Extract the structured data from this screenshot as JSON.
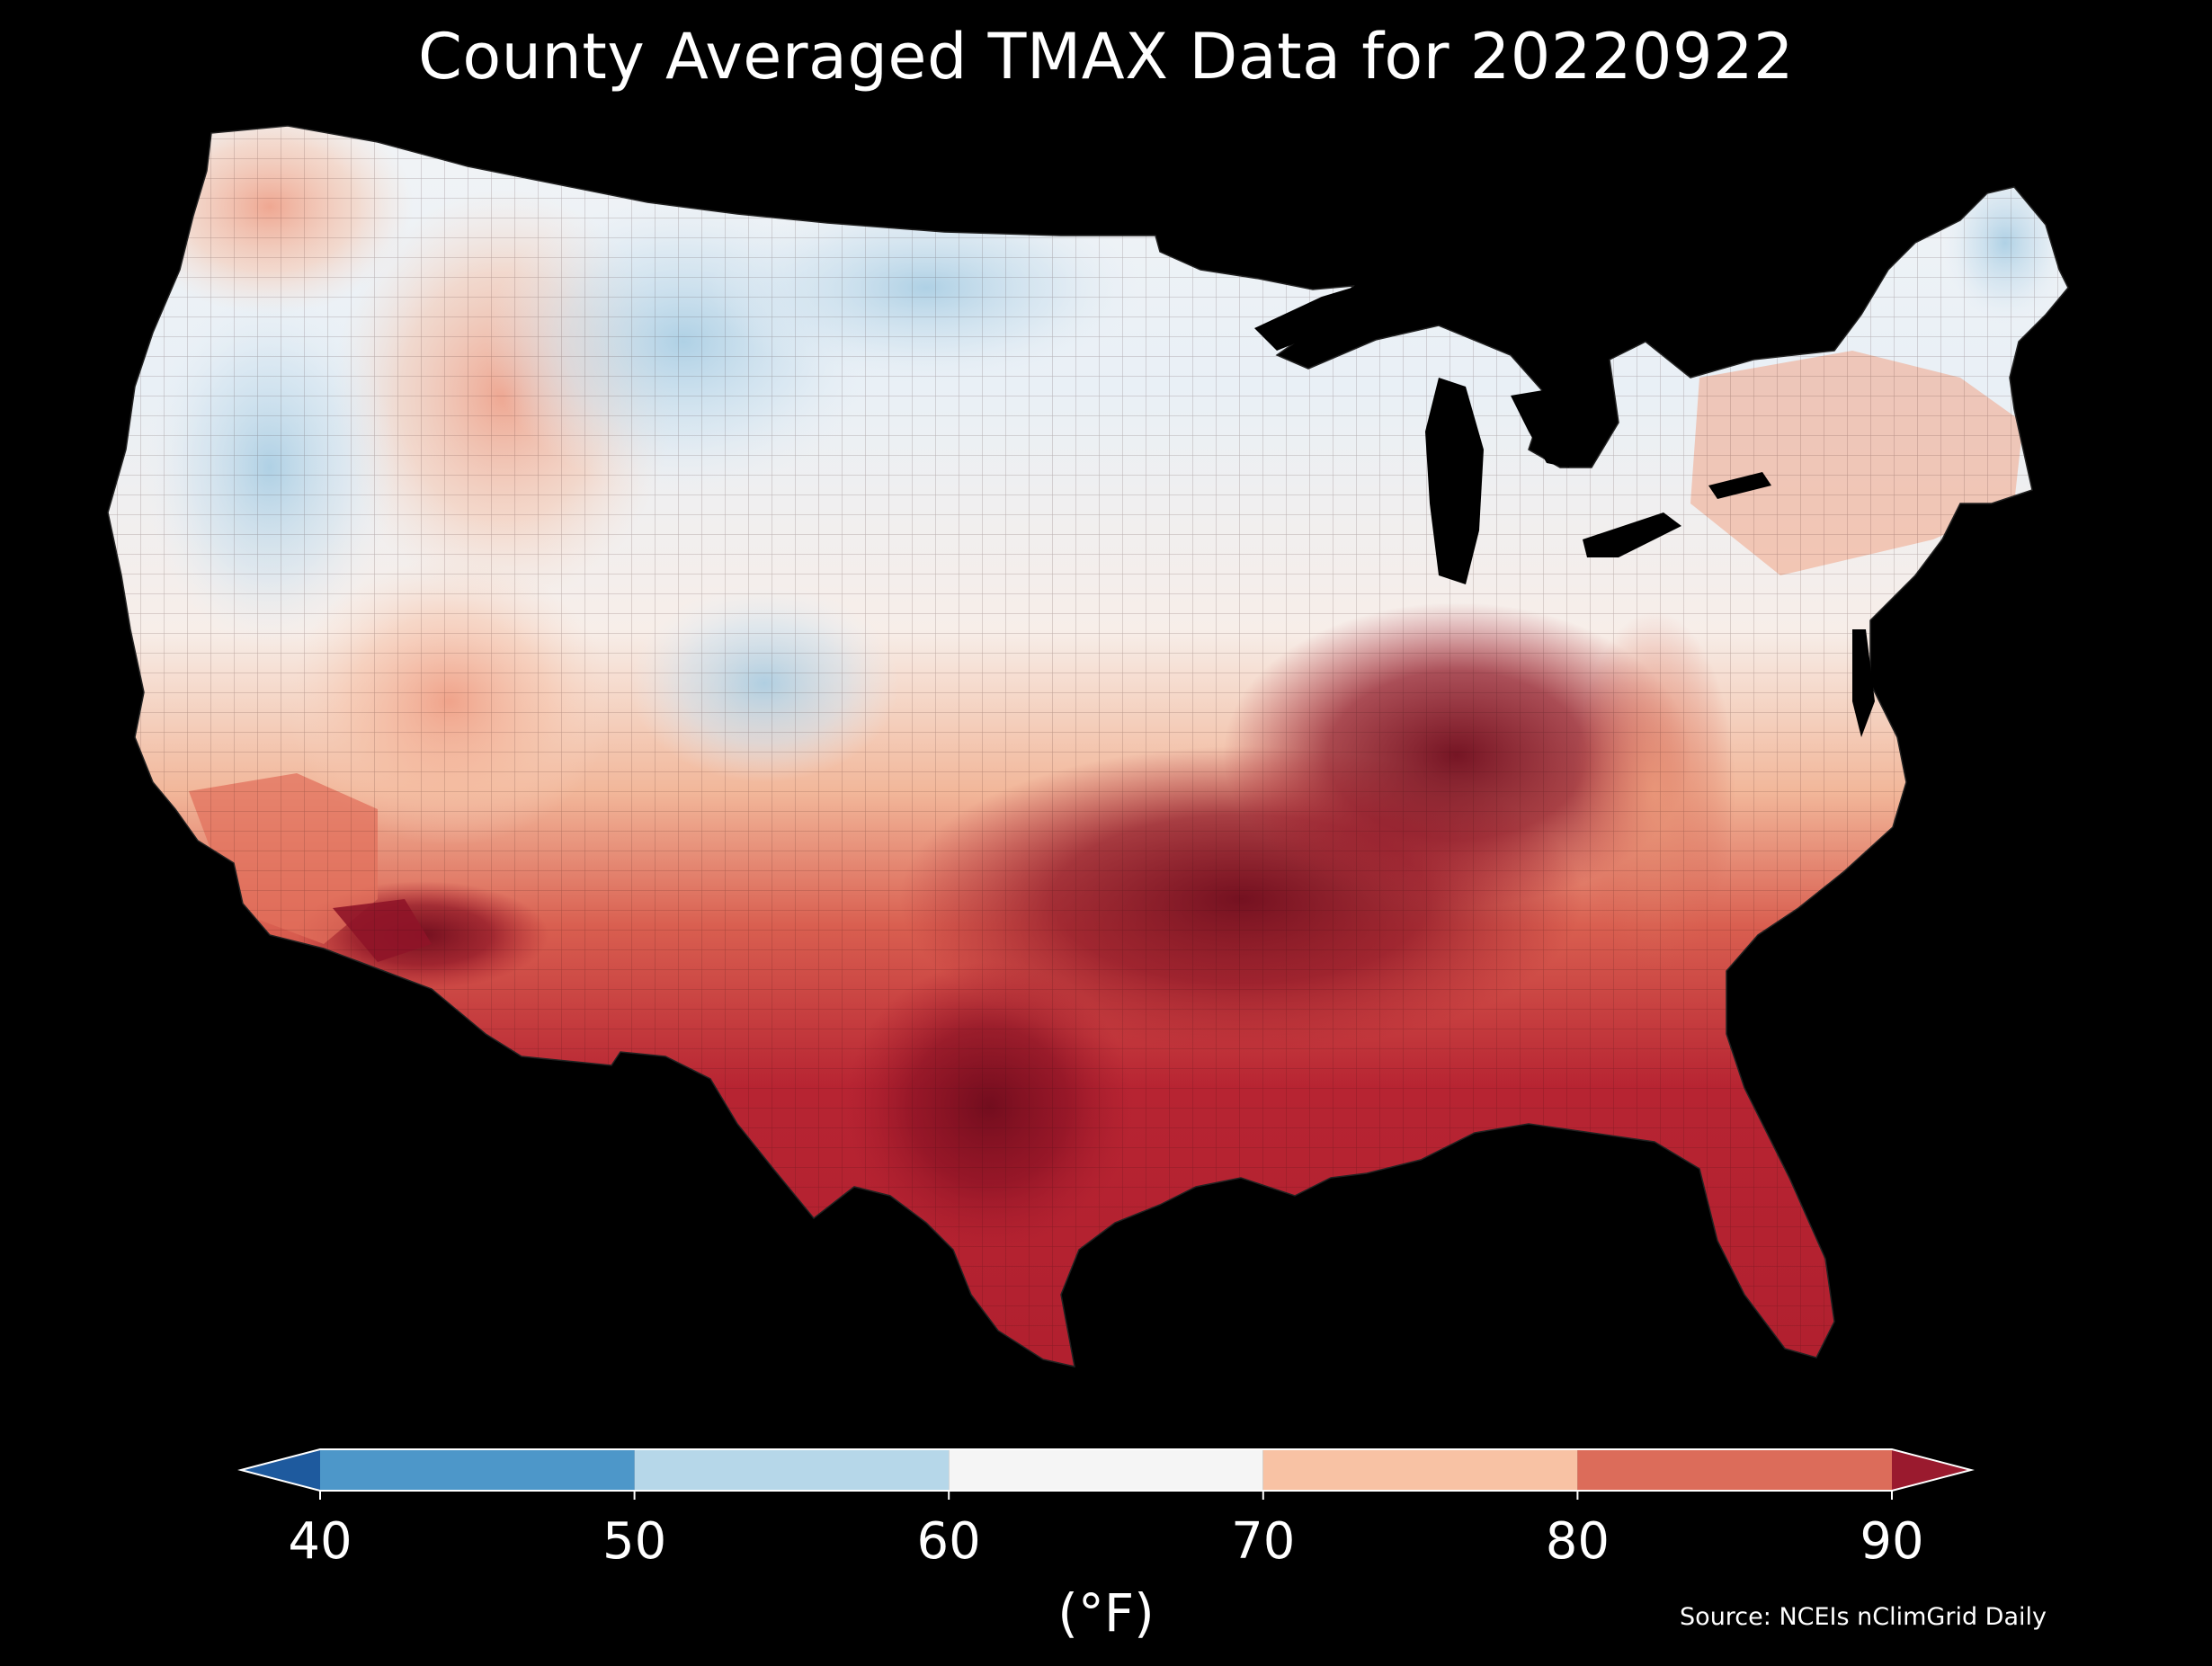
{
  "title": "County Averaged TMAX Data for 20220922",
  "colorbar": {
    "label": "(°F)",
    "ticks": [
      "40",
      "50",
      "60",
      "70",
      "80",
      "90"
    ],
    "tick_values": [
      40,
      50,
      60,
      70,
      80,
      90
    ],
    "extend": "both",
    "colors": {
      "below_40": "#1e5a9e",
      "40_50": "#4d97c9",
      "50_60": "#b6d7e9",
      "60_70": "#f5f5f5",
      "70_80": "#f8c2a4",
      "80_90": "#dc6c5a",
      "above_90": "#9a1a2e"
    }
  },
  "source": "Source: NCEIs nClimGrid Daily",
  "map": {
    "region": "Contiguous United States",
    "variable": "TMAX",
    "date": "20220922",
    "level": "county",
    "regional_values_F": {
      "pacific_northwest_coast": 72,
      "northern_california_interior": 63,
      "great_basin_north": 55,
      "southern_california": 80,
      "southern_arizona": 88,
      "northern_rockies": 58,
      "northern_plains": 62,
      "upper_midwest": 66,
      "central_plains": 84,
      "texas_south": 88,
      "mississippi_valley": 92,
      "ohio_valley": 89,
      "southeast": 87,
      "florida": 86,
      "appalachians": 78,
      "mid_atlantic": 82,
      "new_england_south": 74,
      "northern_maine": 58
    }
  }
}
